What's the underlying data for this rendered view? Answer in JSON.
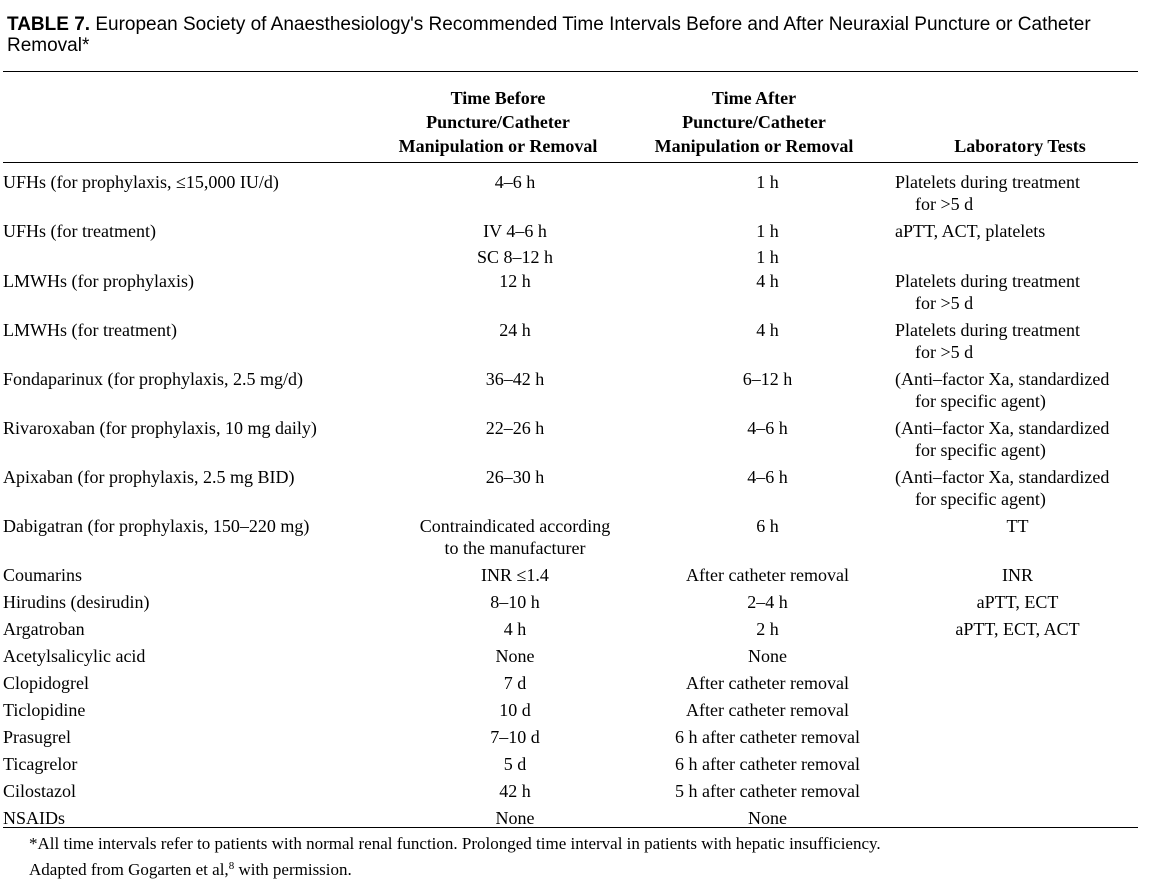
{
  "caption": {
    "label": "TABLE 7.",
    "text": "European Society of Anaesthesiology's Recommended Time Intervals Before and After Neuraxial Puncture or Catheter Removal*"
  },
  "columns": {
    "before": [
      "Time Before",
      "Puncture/Catheter",
      "Manipulation or Removal"
    ],
    "after": [
      "Time After",
      "Puncture/Catheter",
      "Manipulation or Removal"
    ],
    "lab": "Laboratory Tests"
  },
  "rows": [
    {
      "drug": "UFHs (for prophylaxis, ≤15,000 IU/d)",
      "before": [
        "4–6 h"
      ],
      "after": [
        "1 h"
      ],
      "lab": [
        "Platelets during treatment",
        "for >5 d"
      ],
      "lab_align": "left"
    },
    {
      "drug": "UFHs (for treatment)",
      "before": [
        "IV 4–6 h",
        "SC 8–12 h"
      ],
      "after": [
        "1 h",
        "1 h"
      ],
      "lab": [
        "aPTT, ACT, platelets"
      ],
      "lab_align": "left",
      "stacked": true
    },
    {
      "drug": "LMWHs (for prophylaxis)",
      "before": [
        "12 h"
      ],
      "after": [
        "4 h"
      ],
      "lab": [
        "Platelets during treatment",
        "for >5 d"
      ],
      "lab_align": "left"
    },
    {
      "drug": "LMWHs (for treatment)",
      "before": [
        "24 h"
      ],
      "after": [
        "4 h"
      ],
      "lab": [
        "Platelets during treatment",
        "for >5 d"
      ],
      "lab_align": "left"
    },
    {
      "drug": "Fondaparinux (for prophylaxis, 2.5 mg/d)",
      "before": [
        "36–42 h"
      ],
      "after": [
        "6–12 h"
      ],
      "lab": [
        "(Anti–factor Xa, standardized",
        "for specific agent)"
      ],
      "lab_align": "left"
    },
    {
      "drug": "Rivaroxaban (for prophylaxis, 10 mg daily)",
      "before": [
        "22–26 h"
      ],
      "after": [
        "4–6 h"
      ],
      "lab": [
        "(Anti–factor Xa, standardized",
        "for specific agent)"
      ],
      "lab_align": "left"
    },
    {
      "drug": "Apixaban (for prophylaxis, 2.5 mg BID)",
      "before": [
        "26–30 h"
      ],
      "after": [
        "4–6 h"
      ],
      "lab": [
        "(Anti–factor Xa, standardized",
        "for specific agent)"
      ],
      "lab_align": "left"
    },
    {
      "drug": "Dabigatran (for prophylaxis, 150–220 mg)",
      "before": [
        "Contraindicated according",
        "to the manufacturer"
      ],
      "after": [
        "6 h"
      ],
      "lab": [
        "TT"
      ],
      "lab_align": "center"
    },
    {
      "drug": "Coumarins",
      "before": [
        "INR ≤1.4"
      ],
      "after": [
        "After catheter removal"
      ],
      "lab": [
        "INR"
      ],
      "lab_align": "center"
    },
    {
      "drug": "Hirudins (desirudin)",
      "before": [
        "8–10 h"
      ],
      "after": [
        "2–4 h"
      ],
      "lab": [
        "aPTT, ECT"
      ],
      "lab_align": "center"
    },
    {
      "drug": "Argatroban",
      "before": [
        "4 h"
      ],
      "after": [
        "2 h"
      ],
      "lab": [
        "aPTT, ECT, ACT"
      ],
      "lab_align": "center"
    },
    {
      "drug": "Acetylsalicylic acid",
      "before": [
        "None"
      ],
      "after": [
        "None"
      ],
      "lab": [],
      "lab_align": "center"
    },
    {
      "drug": "Clopidogrel",
      "before": [
        "7 d"
      ],
      "after": [
        "After catheter removal"
      ],
      "lab": [],
      "lab_align": "center"
    },
    {
      "drug": "Ticlopidine",
      "before": [
        "10 d"
      ],
      "after": [
        "After catheter removal"
      ],
      "lab": [],
      "lab_align": "center"
    },
    {
      "drug": "Prasugrel",
      "before": [
        "7–10 d"
      ],
      "after": [
        "6 h after catheter removal"
      ],
      "lab": [],
      "lab_align": "center"
    },
    {
      "drug": "Ticagrelor",
      "before": [
        "5 d"
      ],
      "after": [
        "6 h after catheter removal"
      ],
      "lab": [],
      "lab_align": "center"
    },
    {
      "drug": "Cilostazol",
      "before": [
        "42 h"
      ],
      "after": [
        "5 h after catheter removal"
      ],
      "lab": [],
      "lab_align": "center"
    },
    {
      "drug": "NSAIDs",
      "before": [
        "None"
      ],
      "after": [
        "None"
      ],
      "lab": [],
      "lab_align": "center"
    }
  ],
  "footnotes": {
    "note1": "*All time intervals refer to patients with normal renal function. Prolonged time interval in patients with hepatic insufficiency.",
    "note2_pre": "Adapted from Gogarten et al,",
    "note2_ref": "8",
    "note2_post": " with permission."
  }
}
